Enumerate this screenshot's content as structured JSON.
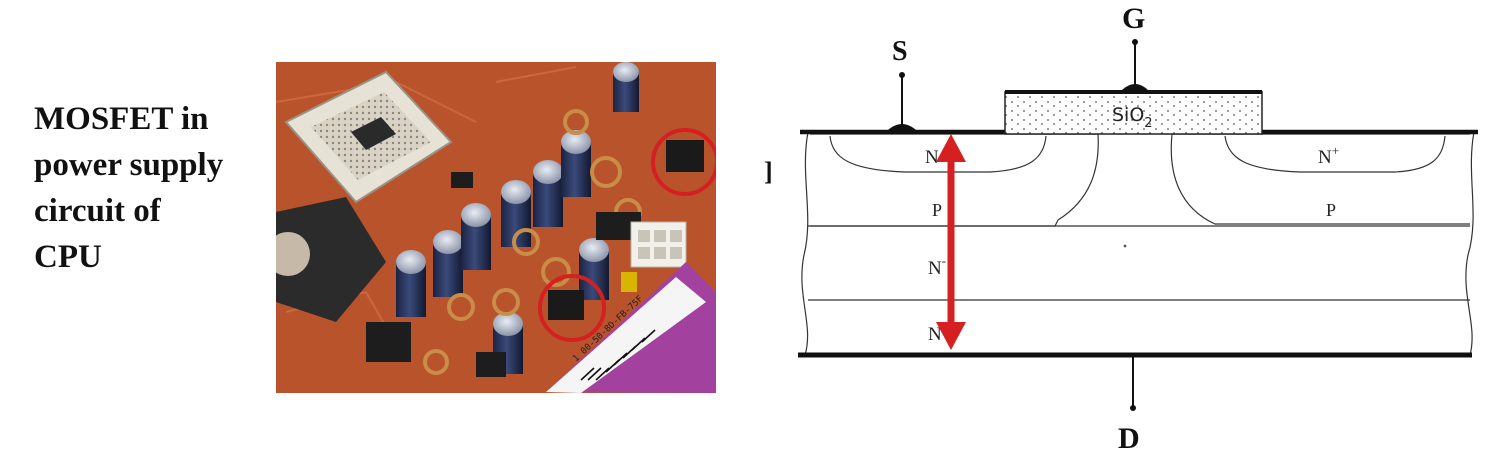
{
  "caption": {
    "line1": "MOSFET in",
    "line2": "power supply",
    "line3": "circuit of",
    "line4": "CPU"
  },
  "photo": {
    "subject": "CPU motherboard power-supply area with two MOSFETs circled",
    "highlight_color": "#d42020",
    "board_color": "#b9532b",
    "barcode_text": "1 00-50-8D-FB-75F"
  },
  "diagram": {
    "terminal_source": "S",
    "terminal_gate": "G",
    "terminal_drain": "D",
    "oxide_label": "SiO",
    "oxide_subscript": "2",
    "region_left_n": "N",
    "region_right_n": "N",
    "region_right_n_sup": "+",
    "region_left_p": "P",
    "region_right_p": "P",
    "region_n_drift": "N",
    "region_n_drift_sup": "-",
    "region_n_sub": "N",
    "side_mark": "]",
    "arrow_color": "#d42020"
  }
}
